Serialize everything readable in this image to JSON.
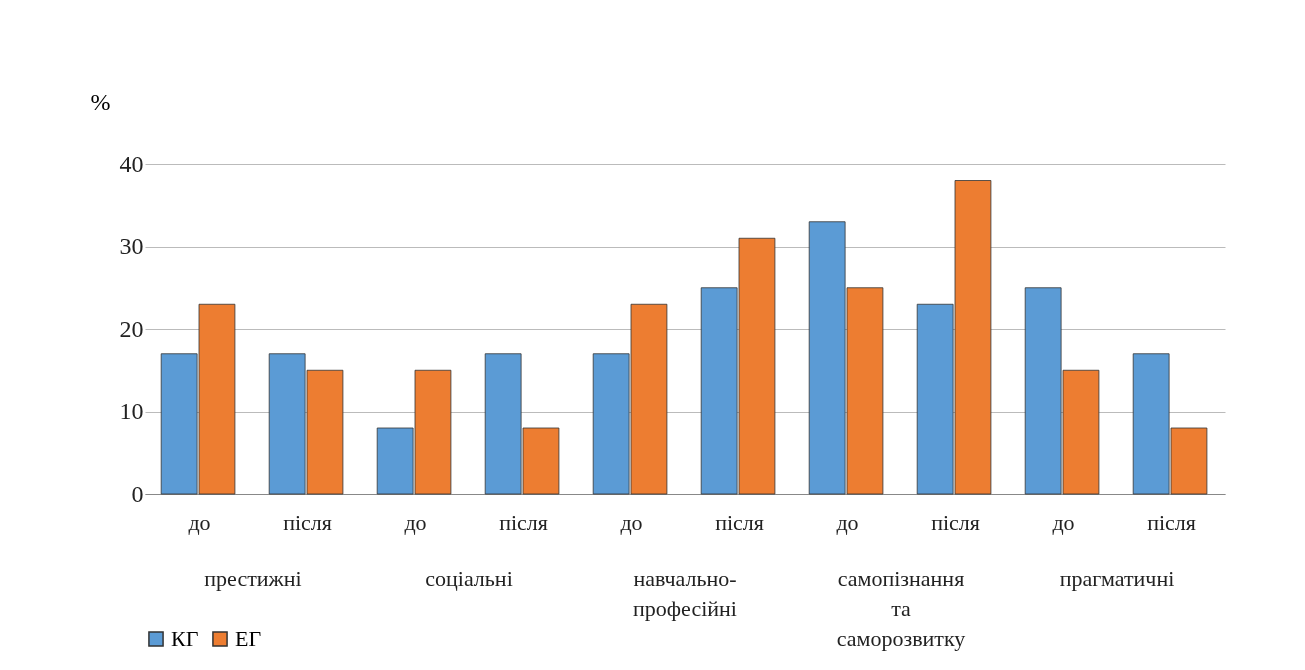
{
  "chart_data": {
    "type": "bar",
    "ylabel": "%",
    "categories": [
      "до",
      "після",
      "до",
      "після",
      "до",
      "після",
      "до",
      "після",
      "до",
      "після"
    ],
    "annotations": [
      "престижні",
      "соціальні",
      "навчально-\nпрофесійні",
      "самопізнання\nта\nсаморозвитку",
      "прагматичні"
    ],
    "series": [
      {
        "name": "КГ",
        "color": "#5b9bd5",
        "values": [
          17,
          17,
          8,
          17,
          17,
          25,
          33,
          23,
          25,
          17
        ]
      },
      {
        "name": "ЕГ",
        "color": "#ed7d31",
        "values": [
          23,
          15,
          15,
          8,
          23,
          31,
          25,
          38,
          15,
          8
        ]
      }
    ],
    "ylim": [
      0,
      40
    ],
    "yticks": [
      0,
      10,
      20,
      30,
      40
    ],
    "grid": "y",
    "legend": "bottom"
  }
}
